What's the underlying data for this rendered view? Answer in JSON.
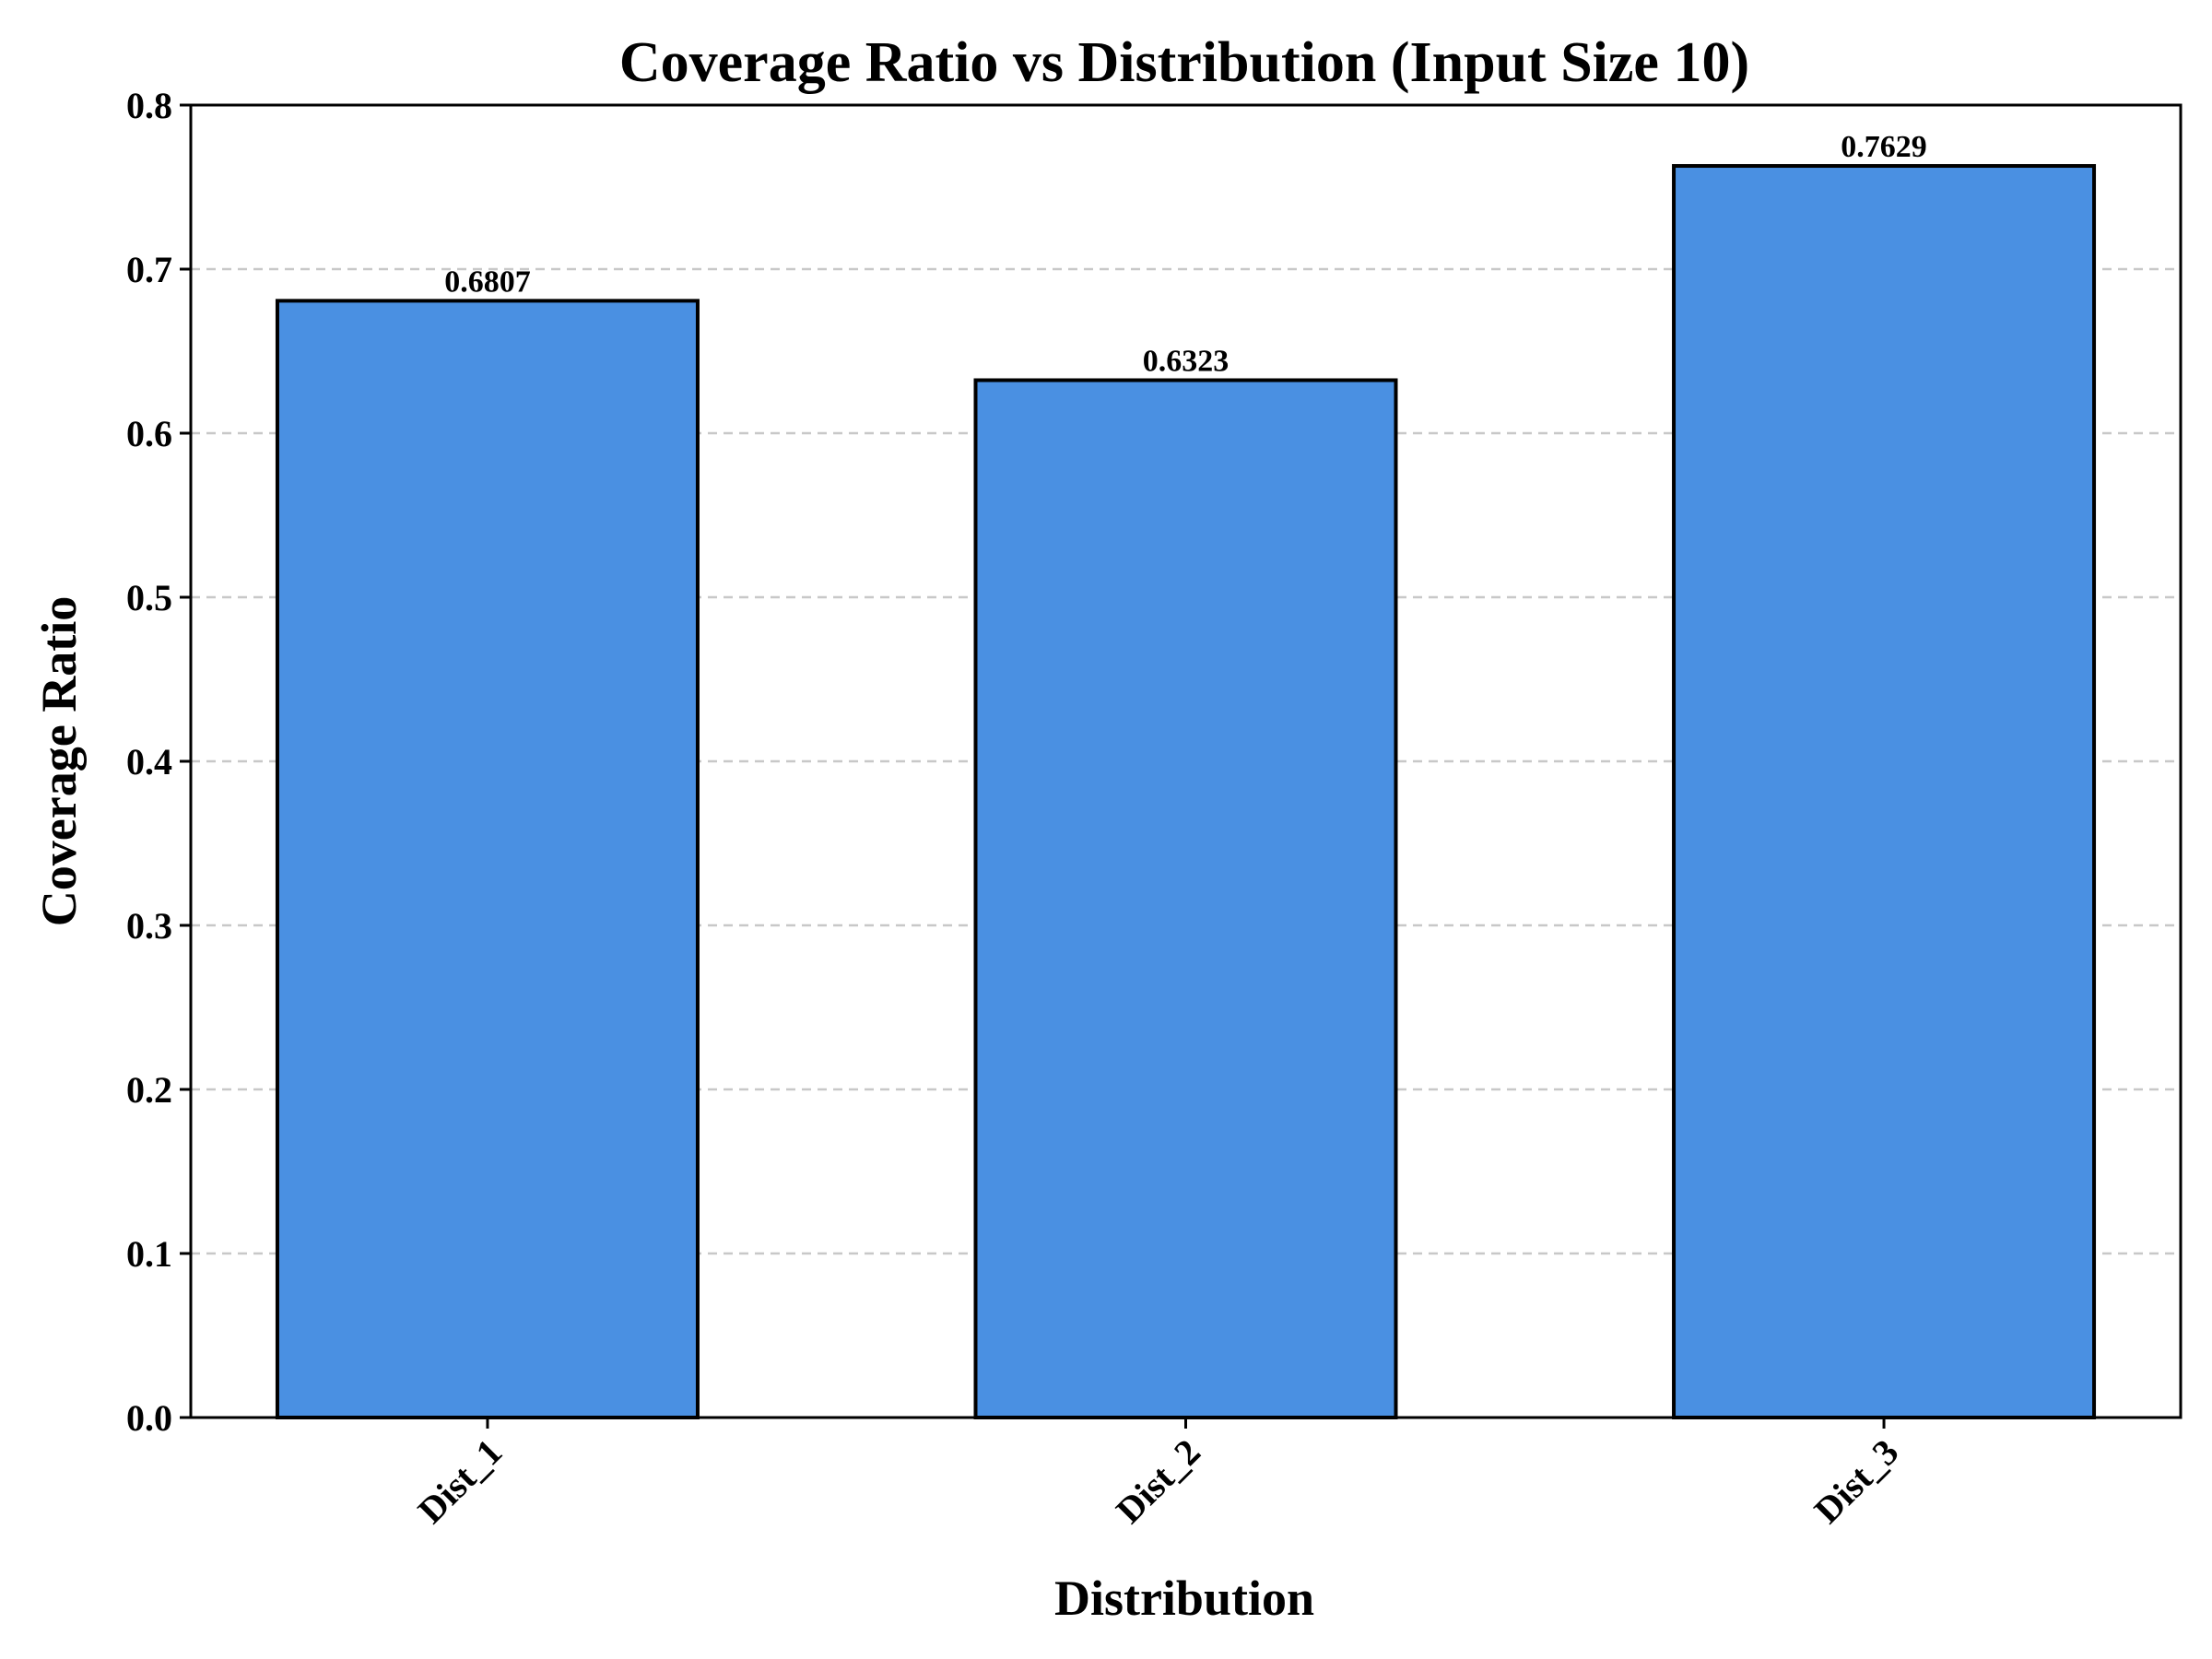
{
  "chart_data": {
    "type": "bar",
    "title": "Coverage Ratio vs Distribution (Input Size 10)",
    "xlabel": "Distribution",
    "ylabel": "Coverage Ratio",
    "categories": [
      "Dist_1",
      "Dist_2",
      "Dist_3"
    ],
    "values": [
      0.6807,
      0.6323,
      0.7629
    ],
    "value_labels": [
      "0.6807",
      "0.6323",
      "0.7629"
    ],
    "ylim": [
      0,
      0.8
    ],
    "yticks": [
      "0.0",
      "0.1",
      "0.2",
      "0.3",
      "0.4",
      "0.5",
      "0.6",
      "0.7",
      "0.8"
    ],
    "grid": true,
    "grid_axis": "y",
    "grid_style": "dashed",
    "bar_color": "#4a90e2",
    "bar_edge_color": "#000000",
    "legend": false,
    "xtick_rotation": "45 degrees"
  }
}
